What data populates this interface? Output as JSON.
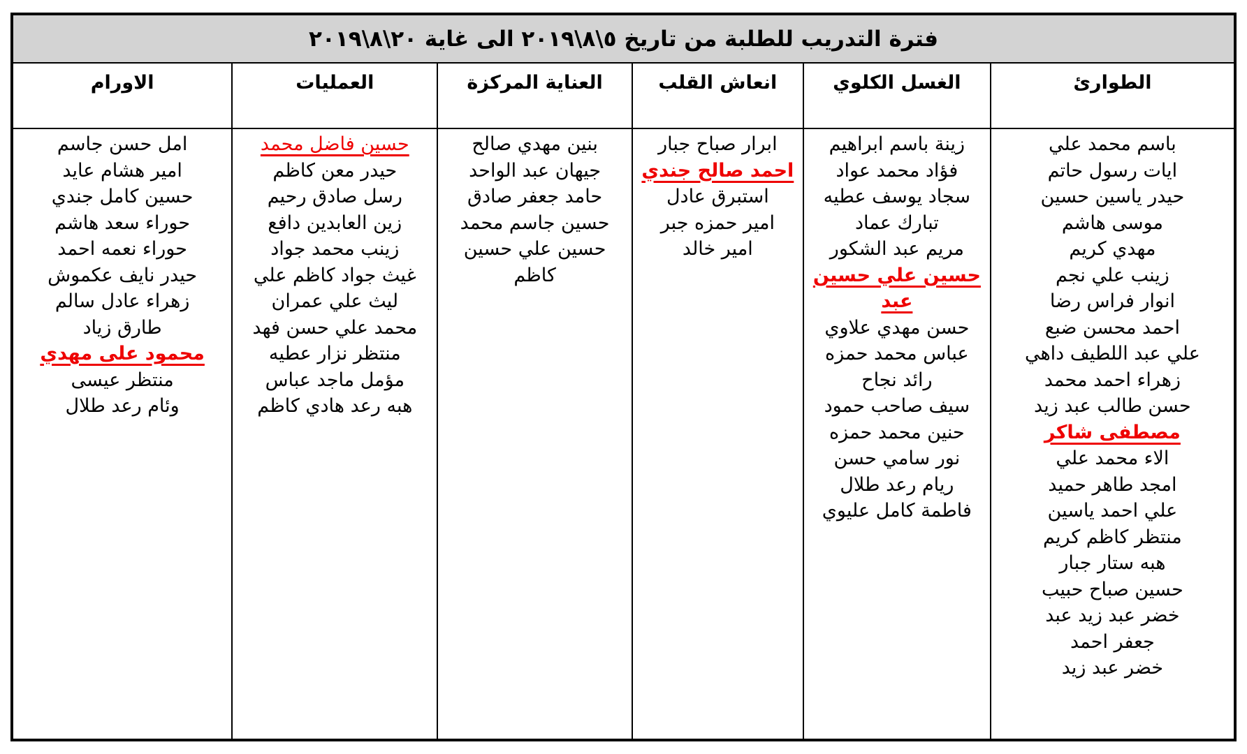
{
  "title": "فترة التدريب للطلبة من تاريخ ٥\\٨\\٢٠١٩ الى غاية ٢٠\\٨\\٢٠١٩",
  "colors": {
    "title_background": "#d3d3d3",
    "highlight_red": "#ee0000",
    "border": "#000000",
    "text": "#000000"
  },
  "columns": [
    {
      "id": "emergency",
      "header": "الطوارئ",
      "width_pct": 20.0,
      "students": [
        {
          "name": "باسم محمد علي",
          "highlight": false
        },
        {
          "name": "ايات رسول حاتم",
          "highlight": false
        },
        {
          "name": "حيدر ياسين حسين",
          "highlight": false
        },
        {
          "name": "موسى هاشم",
          "highlight": false
        },
        {
          "name": "مهدي كريم",
          "highlight": false
        },
        {
          "name": "زينب علي نجم",
          "highlight": false
        },
        {
          "name": "انوار فراس رضا",
          "highlight": false
        },
        {
          "name": "احمد محسن ضبع",
          "highlight": false
        },
        {
          "name": "علي عبد اللطيف داهي",
          "highlight": false
        },
        {
          "name": "زهراء احمد محمد",
          "highlight": false
        },
        {
          "name": "حسن طالب عبد زيد",
          "highlight": false
        },
        {
          "name": "مصطفى شاكر",
          "highlight": true,
          "bold": true
        },
        {
          "name": "الاء محمد علي",
          "highlight": false
        },
        {
          "name": "امجد طاهر حميد",
          "highlight": false
        },
        {
          "name": "علي احمد ياسين",
          "highlight": false
        },
        {
          "name": "منتظر كاظم كريم",
          "highlight": false
        },
        {
          "name": "هبه ستار جبار",
          "highlight": false
        },
        {
          "name": "حسين صباح حبيب",
          "highlight": false
        },
        {
          "name": "خضر عبد زيد عبد",
          "highlight": false
        },
        {
          "name": "جعفر احمد",
          "highlight": false
        },
        {
          "name": "خضر عبد زيد",
          "highlight": false
        }
      ]
    },
    {
      "id": "dialysis",
      "header": "الغسل الكلوي",
      "width_pct": 15.3,
      "students": [
        {
          "name": "زينة باسم ابراهيم",
          "highlight": false
        },
        {
          "name": "فؤاد محمد عواد",
          "highlight": false
        },
        {
          "name": "سجاد يوسف عطيه",
          "highlight": false
        },
        {
          "name": "تبارك عماد",
          "highlight": false
        },
        {
          "name": "مريم عبد الشكور",
          "highlight": false
        },
        {
          "name": "حسين علي حسين عبد",
          "highlight": true,
          "bold": true
        },
        {
          "name": "حسن مهدي علاوي",
          "highlight": false
        },
        {
          "name": "عباس محمد حمزه",
          "highlight": false
        },
        {
          "name": "رائد نجاح",
          "highlight": false
        },
        {
          "name": "سيف صاحب حمود",
          "highlight": false
        },
        {
          "name": "حنين محمد حمزه",
          "highlight": false
        },
        {
          "name": "نور سامي حسن",
          "highlight": false
        },
        {
          "name": "ريام رعد طلال",
          "highlight": false
        },
        {
          "name": "فاطمة كامل عليوي",
          "highlight": false
        }
      ]
    },
    {
      "id": "cpr",
      "header": "انعاش القلب",
      "width_pct": 14.0,
      "students": [
        {
          "name": "ابرار صباح جبار",
          "highlight": false
        },
        {
          "name": "احمد صالح جندي",
          "highlight": true,
          "bold": true
        },
        {
          "name": "استبرق عادل",
          "highlight": false
        },
        {
          "name": "امير حمزه جبر",
          "highlight": false
        },
        {
          "name": "امير خالد",
          "highlight": false
        }
      ]
    },
    {
      "id": "icu",
      "header": "العناية المركزة",
      "width_pct": 15.9,
      "students": [
        {
          "name": "بنين مهدي صالح",
          "highlight": false
        },
        {
          "name": "جيهان عبد الواحد",
          "highlight": false
        },
        {
          "name": "حامد جعفر صادق",
          "highlight": false
        },
        {
          "name": "حسين جاسم محمد",
          "highlight": false
        },
        {
          "name": "حسين علي حسين كاظم",
          "highlight": false
        }
      ]
    },
    {
      "id": "operations",
      "header": "العمليات",
      "width_pct": 16.8,
      "students": [
        {
          "name": "حسين فاضل محمد",
          "highlight": true,
          "bold": false
        },
        {
          "name": "حيدر معن كاظم",
          "highlight": false
        },
        {
          "name": "رسل صادق رحيم",
          "highlight": false
        },
        {
          "name": "زين العابدين دافع",
          "highlight": false
        },
        {
          "name": "زينب محمد جواد",
          "highlight": false
        },
        {
          "name": "غيث جواد كاظم علي",
          "highlight": false
        },
        {
          "name": "ليث علي عمران",
          "highlight": false
        },
        {
          "name": "محمد علي حسن فهد",
          "highlight": false
        },
        {
          "name": "منتظر نزار عطيه",
          "highlight": false
        },
        {
          "name": "مؤمل ماجد عباس",
          "highlight": false
        },
        {
          "name": "هبه رعد هادي كاظم",
          "highlight": false
        }
      ]
    },
    {
      "id": "oncology",
      "header": "الاورام",
      "width_pct": 18.0,
      "students": [
        {
          "name": "امل حسن جاسم",
          "highlight": false
        },
        {
          "name": "امير هشام عايد",
          "highlight": false
        },
        {
          "name": "حسين كامل جندي",
          "highlight": false
        },
        {
          "name": "حوراء سعد هاشم",
          "highlight": false
        },
        {
          "name": "حوراء نعمه احمد",
          "highlight": false
        },
        {
          "name": "حيدر نايف عكموش",
          "highlight": false
        },
        {
          "name": "زهراء عادل سالم",
          "highlight": false
        },
        {
          "name": "طارق زياد",
          "highlight": false
        },
        {
          "name": "محمود على مهدي",
          "highlight": true,
          "bold": true
        },
        {
          "name": "منتظر عيسى",
          "highlight": false
        },
        {
          "name": "وئام رعد طلال",
          "highlight": false
        }
      ]
    }
  ]
}
